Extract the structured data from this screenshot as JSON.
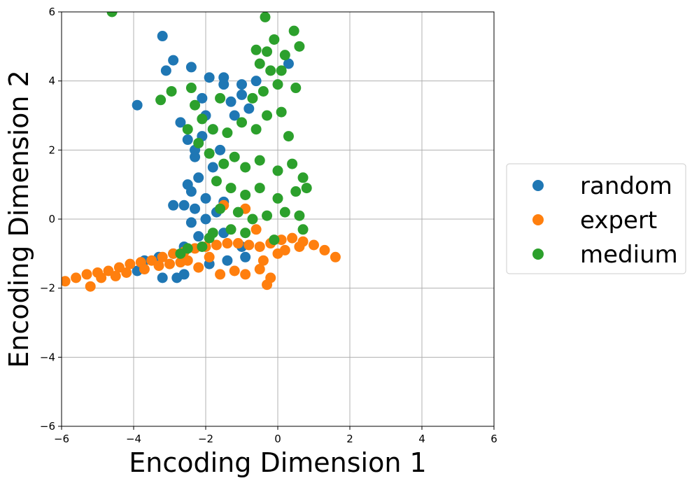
{
  "chart_data": {
    "type": "scatter",
    "title": "",
    "xlabel": "Encoding Dimension 1",
    "ylabel": "Encoding Dimension 2",
    "xlim": [
      -6,
      6
    ],
    "ylim": [
      -6,
      6
    ],
    "xticks": [
      -6,
      -4,
      -2,
      0,
      2,
      4,
      6
    ],
    "yticks": [
      -6,
      -4,
      -2,
      0,
      2,
      4,
      6
    ],
    "xtick_labels": [
      "−6",
      "−4",
      "−2",
      "0",
      "2",
      "4",
      "6"
    ],
    "ytick_labels": [
      "−6",
      "−4",
      "−2",
      "0",
      "2",
      "4",
      "6"
    ],
    "grid": true,
    "legend_position": "right, outside plot area, vertically centered",
    "series": [
      {
        "name": "random",
        "color": "#1f77b4",
        "points": [
          [
            -3.2,
            5.3
          ],
          [
            -2.9,
            4.6
          ],
          [
            -3.1,
            4.3
          ],
          [
            -3.9,
            3.3
          ],
          [
            -2.4,
            4.4
          ],
          [
            -1.9,
            4.1
          ],
          [
            -1.5,
            4.1
          ],
          [
            -1.5,
            3.9
          ],
          [
            -1.0,
            3.9
          ],
          [
            -0.6,
            4.0
          ],
          [
            0.3,
            4.5
          ],
          [
            -2.7,
            2.8
          ],
          [
            -2.5,
            2.3
          ],
          [
            -2.3,
            1.8
          ],
          [
            -2.2,
            1.2
          ],
          [
            -2.4,
            0.8
          ],
          [
            -2.6,
            0.4
          ],
          [
            -2.9,
            0.4
          ],
          [
            -2.4,
            -0.1
          ],
          [
            -2.0,
            0.6
          ],
          [
            -1.8,
            2.6
          ],
          [
            -1.8,
            1.5
          ],
          [
            -1.5,
            0.5
          ],
          [
            -2.2,
            -0.5
          ],
          [
            -2.6,
            -0.8
          ],
          [
            -2.9,
            -1.0
          ],
          [
            -3.3,
            -1.1
          ],
          [
            -3.7,
            -1.2
          ],
          [
            -3.9,
            -1.5
          ],
          [
            -3.2,
            -1.7
          ],
          [
            -2.8,
            -1.7
          ],
          [
            -2.6,
            -1.6
          ],
          [
            -1.9,
            -1.3
          ],
          [
            -1.4,
            -1.2
          ],
          [
            -0.9,
            -1.1
          ],
          [
            -1.2,
            3.0
          ],
          [
            -0.8,
            3.2
          ],
          [
            -1.0,
            3.6
          ],
          [
            -1.3,
            3.4
          ],
          [
            -2.1,
            3.5
          ],
          [
            -2.0,
            3.0
          ],
          [
            -2.3,
            2.0
          ],
          [
            -2.1,
            2.4
          ],
          [
            -1.6,
            2.0
          ],
          [
            -2.5,
            1.0
          ],
          [
            -2.0,
            0.0
          ],
          [
            -1.7,
            0.2
          ],
          [
            -2.3,
            0.3
          ],
          [
            -1.5,
            -0.4
          ],
          [
            -1.0,
            -0.8
          ]
        ]
      },
      {
        "name": "expert",
        "color": "#ff7f0e",
        "points": [
          [
            -5.9,
            -1.8
          ],
          [
            -5.6,
            -1.7
          ],
          [
            -5.3,
            -1.6
          ],
          [
            -5.0,
            -1.55
          ],
          [
            -4.7,
            -1.5
          ],
          [
            -4.4,
            -1.4
          ],
          [
            -4.1,
            -1.3
          ],
          [
            -3.8,
            -1.25
          ],
          [
            -3.5,
            -1.2
          ],
          [
            -3.2,
            -1.1
          ],
          [
            -2.9,
            -1.0
          ],
          [
            -2.6,
            -0.95
          ],
          [
            -2.3,
            -0.85
          ],
          [
            -2.0,
            -0.8
          ],
          [
            -1.7,
            -0.75
          ],
          [
            -1.4,
            -0.7
          ],
          [
            -1.1,
            -0.7
          ],
          [
            -0.8,
            -0.75
          ],
          [
            -0.5,
            -0.8
          ],
          [
            -0.2,
            -0.7
          ],
          [
            0.1,
            -0.6
          ],
          [
            0.4,
            -0.55
          ],
          [
            0.7,
            -0.65
          ],
          [
            1.0,
            -0.75
          ],
          [
            1.3,
            -0.9
          ],
          [
            1.6,
            -1.1
          ],
          [
            -5.2,
            -1.95
          ],
          [
            -4.9,
            -1.7
          ],
          [
            -4.5,
            -1.65
          ],
          [
            -4.2,
            -1.55
          ],
          [
            -3.7,
            -1.45
          ],
          [
            -3.3,
            -1.35
          ],
          [
            -2.7,
            -1.25
          ],
          [
            -2.2,
            -1.4
          ],
          [
            -1.6,
            -1.6
          ],
          [
            -1.2,
            -1.5
          ],
          [
            -0.9,
            -1.6
          ],
          [
            -0.5,
            -1.45
          ],
          [
            -0.3,
            -1.9
          ],
          [
            -0.2,
            -1.7
          ],
          [
            -0.4,
            -1.2
          ],
          [
            0.0,
            -1.0
          ],
          [
            -1.9,
            -1.1
          ],
          [
            -2.5,
            -1.2
          ],
          [
            -3.0,
            -1.3
          ],
          [
            0.2,
            -0.9
          ],
          [
            0.6,
            -0.8
          ],
          [
            -1.5,
            0.4
          ],
          [
            -0.9,
            0.3
          ],
          [
            -0.6,
            -0.3
          ]
        ]
      },
      {
        "name": "medium",
        "color": "#2ca02c",
        "points": [
          [
            -4.6,
            6.0
          ],
          [
            -0.35,
            5.85
          ],
          [
            0.45,
            5.45
          ],
          [
            -0.1,
            5.2
          ],
          [
            0.6,
            5.0
          ],
          [
            -0.6,
            4.9
          ],
          [
            -0.3,
            4.85
          ],
          [
            0.2,
            4.75
          ],
          [
            -0.5,
            4.5
          ],
          [
            -0.2,
            4.3
          ],
          [
            0.1,
            4.3
          ],
          [
            -3.25,
            3.45
          ],
          [
            -2.95,
            3.7
          ],
          [
            -2.4,
            3.8
          ],
          [
            0.5,
            3.8
          ],
          [
            -1.6,
            3.5
          ],
          [
            -0.7,
            3.5
          ],
          [
            -0.4,
            3.7
          ],
          [
            0.0,
            3.9
          ],
          [
            -2.3,
            3.3
          ],
          [
            -2.1,
            2.9
          ],
          [
            -1.8,
            2.6
          ],
          [
            -1.4,
            2.5
          ],
          [
            -1.0,
            2.8
          ],
          [
            -0.6,
            2.6
          ],
          [
            -0.3,
            3.0
          ],
          [
            0.1,
            3.1
          ],
          [
            0.3,
            2.4
          ],
          [
            -2.5,
            2.6
          ],
          [
            -2.2,
            2.2
          ],
          [
            -1.9,
            1.9
          ],
          [
            -1.5,
            1.6
          ],
          [
            -1.2,
            1.8
          ],
          [
            -0.9,
            1.5
          ],
          [
            -0.5,
            1.7
          ],
          [
            0.0,
            1.4
          ],
          [
            0.4,
            1.6
          ],
          [
            -1.7,
            1.1
          ],
          [
            -1.3,
            0.9
          ],
          [
            -0.9,
            0.7
          ],
          [
            -0.5,
            0.9
          ],
          [
            0.0,
            0.6
          ],
          [
            0.5,
            0.8
          ],
          [
            0.8,
            0.9
          ],
          [
            0.7,
            1.2
          ],
          [
            -1.6,
            0.3
          ],
          [
            -1.1,
            0.2
          ],
          [
            -0.7,
            0.0
          ],
          [
            -0.3,
            0.1
          ],
          [
            0.2,
            0.2
          ],
          [
            0.6,
            0.1
          ],
          [
            -1.8,
            -0.4
          ],
          [
            -1.3,
            -0.3
          ],
          [
            -0.9,
            -0.4
          ],
          [
            -0.1,
            -0.6
          ],
          [
            0.7,
            -0.3
          ],
          [
            -2.7,
            -1.0
          ],
          [
            -2.5,
            -0.85
          ],
          [
            -2.1,
            -0.8
          ],
          [
            -1.9,
            -0.55
          ]
        ]
      }
    ]
  }
}
